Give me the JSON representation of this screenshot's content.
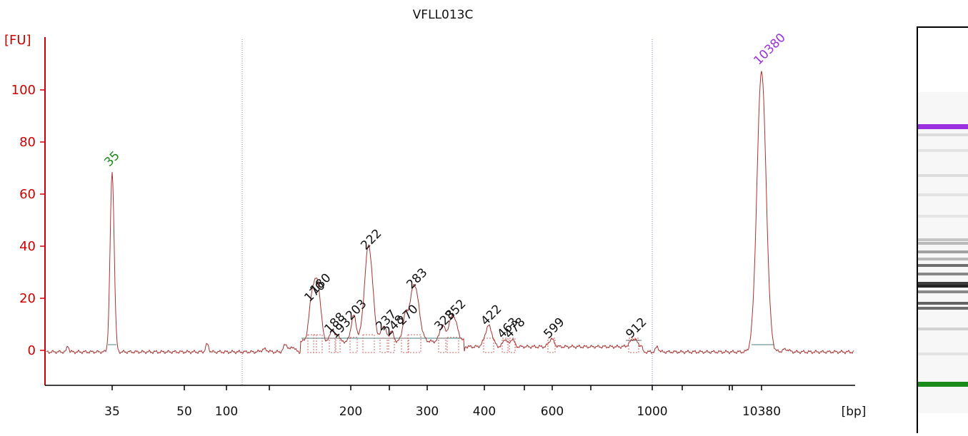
{
  "chart_data": {
    "type": "line",
    "title": "VFLL013C",
    "ylabel": "[FU]",
    "xlabel": "[bp]",
    "ylim": [
      -12,
      120
    ],
    "yticks": [
      0,
      20,
      40,
      60,
      80,
      100
    ],
    "xticks": [
      "35",
      "50",
      "100",
      "200",
      "300",
      "400",
      "600",
      "1000",
      "10380"
    ],
    "peaks": [
      {
        "label": "35",
        "color": "#1a8a1a",
        "height": 69
      },
      {
        "label": "170",
        "color": "#111111",
        "height": 17
      },
      {
        "label": "180",
        "color": "#111111",
        "height": 20
      },
      {
        "label": "188",
        "color": "#111111",
        "height": 5
      },
      {
        "label": "193",
        "color": "#111111",
        "height": 3
      },
      {
        "label": "203",
        "color": "#111111",
        "height": 10
      },
      {
        "label": "222",
        "color": "#111111",
        "height": 37
      },
      {
        "label": "237",
        "color": "#111111",
        "height": 6
      },
      {
        "label": "248",
        "color": "#111111",
        "height": 4
      },
      {
        "label": "270",
        "color": "#111111",
        "height": 8
      },
      {
        "label": "283",
        "color": "#111111",
        "height": 22
      },
      {
        "label": "328",
        "color": "#111111",
        "height": 6
      },
      {
        "label": "352",
        "color": "#111111",
        "height": 10
      },
      {
        "label": "422",
        "color": "#111111",
        "height": 8
      },
      {
        "label": "463",
        "color": "#111111",
        "height": 3
      },
      {
        "label": "478",
        "color": "#111111",
        "height": 3
      },
      {
        "label": "599",
        "color": "#111111",
        "height": 3
      },
      {
        "label": "912",
        "color": "#111111",
        "height": 3
      },
      {
        "label": "10380",
        "color": "#9b30e0",
        "height": 108
      }
    ],
    "colors": {
      "axis": "#d00000",
      "trace": "#b03030",
      "marker_lower": "#1a8a1a",
      "marker_upper": "#9b30e0",
      "region_line": "#6a9a9a",
      "region_box": "#e06060",
      "divider": "#7a7ac8"
    }
  }
}
